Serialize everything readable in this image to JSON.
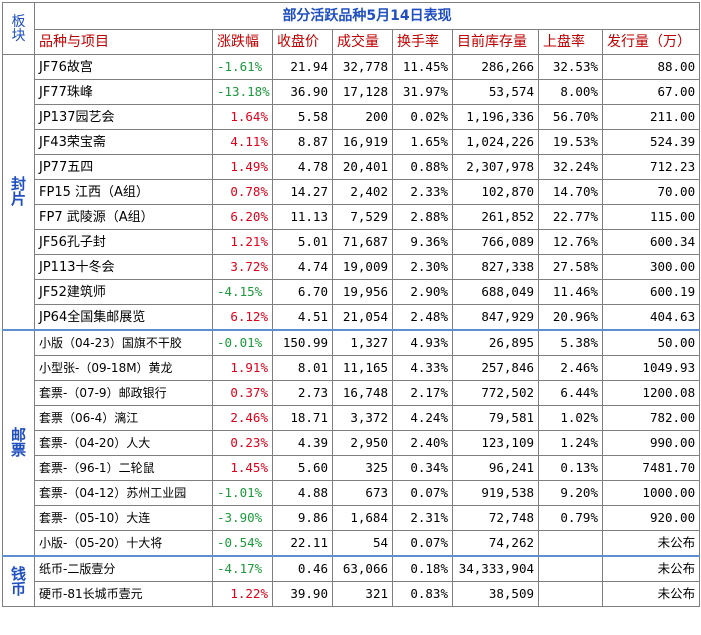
{
  "title": "部分活跃品种5月14日表现",
  "sector_header": [
    "板",
    "块"
  ],
  "columns": [
    "品种与项目",
    "涨跌幅",
    "收盘价",
    "成交量",
    "换手率",
    "目前库存量",
    "上盘率",
    "发行量（万）"
  ],
  "sectors": [
    {
      "chars": [
        "封",
        "片"
      ],
      "rows": [
        {
          "name": "JF76故宫",
          "change": "-1.61%",
          "dir": "down",
          "close": "21.94",
          "volume": "32,778",
          "turnover": "11.45%",
          "stock": "286,266",
          "rate": "32.53%",
          "issue": "88.00"
        },
        {
          "name": "JF77珠峰",
          "change": "-13.18%",
          "dir": "down",
          "close": "36.90",
          "volume": "17,128",
          "turnover": "31.97%",
          "stock": "53,574",
          "rate": "8.00%",
          "issue": "67.00"
        },
        {
          "name": "JP137园艺会",
          "change": "1.64%",
          "dir": "up",
          "close": "5.58",
          "volume": "200",
          "turnover": "0.02%",
          "stock": "1,196,336",
          "rate": "56.70%",
          "issue": "211.00"
        },
        {
          "name": "JF43荣宝斋",
          "change": "4.11%",
          "dir": "up",
          "close": "8.87",
          "volume": "16,919",
          "turnover": "1.65%",
          "stock": "1,024,226",
          "rate": "19.53%",
          "issue": "524.39"
        },
        {
          "name": "JP77五四",
          "change": "1.49%",
          "dir": "up",
          "close": "4.78",
          "volume": "20,401",
          "turnover": "0.88%",
          "stock": "2,307,978",
          "rate": "32.24%",
          "issue": "712.23"
        },
        {
          "name": "FP15 江西（A组）",
          "change": "0.78%",
          "dir": "up",
          "close": "14.27",
          "volume": "2,402",
          "turnover": "2.33%",
          "stock": "102,870",
          "rate": "14.70%",
          "issue": "70.00"
        },
        {
          "name": "FP7 武陵源（A组）",
          "change": "6.20%",
          "dir": "up",
          "close": "11.13",
          "volume": "7,529",
          "turnover": "2.88%",
          "stock": "261,852",
          "rate": "22.77%",
          "issue": "115.00"
        },
        {
          "name": "JF56孔子封",
          "change": "1.21%",
          "dir": "up",
          "close": "5.01",
          "volume": "71,687",
          "turnover": "9.36%",
          "stock": "766,089",
          "rate": "12.76%",
          "issue": "600.34"
        },
        {
          "name": "JP113十冬会",
          "change": "3.72%",
          "dir": "up",
          "close": "4.74",
          "volume": "19,009",
          "turnover": "2.30%",
          "stock": "827,338",
          "rate": "27.58%",
          "issue": "300.00"
        },
        {
          "name": "JF52建筑师",
          "change": "-4.15%",
          "dir": "down",
          "close": "6.70",
          "volume": "19,956",
          "turnover": "2.90%",
          "stock": "688,049",
          "rate": "11.46%",
          "issue": "600.19"
        },
        {
          "name": "JP64全国集邮展览",
          "change": "6.12%",
          "dir": "up",
          "close": "4.51",
          "volume": "21,054",
          "turnover": "2.48%",
          "stock": "847,929",
          "rate": "20.96%",
          "issue": "404.63"
        }
      ]
    },
    {
      "chars": [
        "邮",
        "票"
      ],
      "rows": [
        {
          "name": "小版（04-23）国旗不干胶",
          "change": "-0.01%",
          "dir": "down",
          "close": "150.99",
          "volume": "1,327",
          "turnover": "4.93%",
          "stock": "26,895",
          "rate": "5.38%",
          "issue": "50.00"
        },
        {
          "name": "小型张-（09-18M）黄龙",
          "change": "1.91%",
          "dir": "up",
          "close": "8.01",
          "volume": "11,165",
          "turnover": "4.33%",
          "stock": "257,846",
          "rate": "2.46%",
          "issue": "1049.93"
        },
        {
          "name": "套票-（07-9）邮政银行",
          "change": "0.37%",
          "dir": "up",
          "close": "2.73",
          "volume": "16,748",
          "turnover": "2.17%",
          "stock": "772,502",
          "rate": "6.44%",
          "issue": "1200.08"
        },
        {
          "name": "套票（06-4）漓江",
          "change": "2.46%",
          "dir": "up",
          "close": "18.71",
          "volume": "3,372",
          "turnover": "4.24%",
          "stock": "79,581",
          "rate": "1.02%",
          "issue": "782.00"
        },
        {
          "name": "套票-（04-20）人大",
          "change": "0.23%",
          "dir": "up",
          "close": "4.39",
          "volume": "2,950",
          "turnover": "2.40%",
          "stock": "123,109",
          "rate": "1.24%",
          "issue": "990.00"
        },
        {
          "name": "套票-（96-1）二轮鼠",
          "change": "1.45%",
          "dir": "up",
          "close": "5.60",
          "volume": "325",
          "turnover": "0.34%",
          "stock": "96,241",
          "rate": "0.13%",
          "issue": "7481.70"
        },
        {
          "name": "套票-（04-12）苏州工业园",
          "change": "-1.01%",
          "dir": "down",
          "close": "4.88",
          "volume": "673",
          "turnover": "0.07%",
          "stock": "919,538",
          "rate": "9.20%",
          "issue": "1000.00"
        },
        {
          "name": "套票-（05-10）大连",
          "change": "-3.90%",
          "dir": "down",
          "close": "9.86",
          "volume": "1,684",
          "turnover": "2.31%",
          "stock": "72,748",
          "rate": "0.79%",
          "issue": "920.00"
        },
        {
          "name": "小版-（05-20）十大将",
          "change": "-0.54%",
          "dir": "down",
          "close": "22.11",
          "volume": "54",
          "turnover": "0.07%",
          "stock": "74,262",
          "rate": "",
          "issue": "未公布"
        }
      ]
    },
    {
      "chars": [
        "钱",
        "币"
      ],
      "rows": [
        {
          "name": "纸币-二版壹分",
          "change": "-4.17%",
          "dir": "down",
          "close": "0.46",
          "volume": "63,066",
          "turnover": "0.18%",
          "stock": "34,333,904",
          "rate": "",
          "issue": "未公布"
        },
        {
          "name": "硬币-81长城币壹元",
          "change": "1.22%",
          "dir": "up",
          "close": "39.90",
          "volume": "321",
          "turnover": "0.83%",
          "stock": "38,509",
          "rate": "",
          "issue": "未公布"
        }
      ]
    }
  ]
}
